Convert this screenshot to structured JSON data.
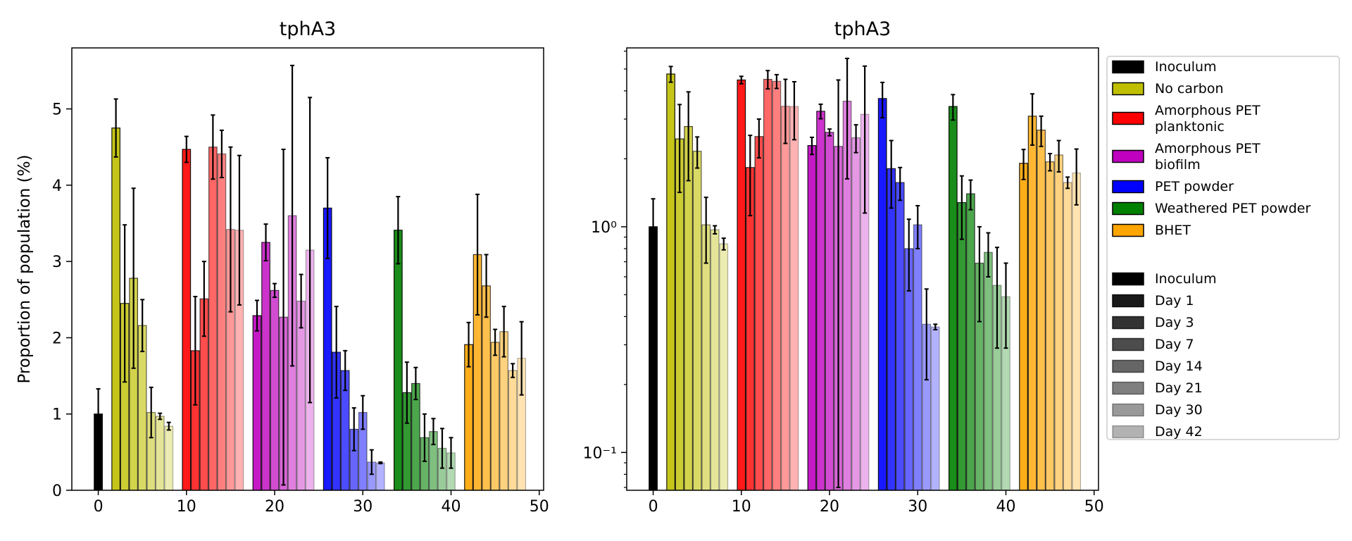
{
  "chart_data": [
    {
      "type": "bar",
      "title": "tphA3",
      "ylabel": "Proportion of population (%)",
      "xlabel": "",
      "yscale": "linear",
      "xlim": [
        -3,
        50.5
      ],
      "ylim": [
        0,
        5.8
      ],
      "xticks": [
        0,
        10,
        20,
        30,
        40,
        50
      ],
      "yticks": [
        0,
        1,
        2,
        3,
        4,
        5
      ],
      "grid": false
    },
    {
      "type": "bar",
      "title": "tphA3",
      "ylabel": "",
      "xlabel": "",
      "yscale": "log",
      "xlim": [
        -3,
        50.5
      ],
      "ylim": [
        0.068,
        6.2
      ],
      "xticks": [
        0,
        10,
        20,
        30,
        40,
        50
      ],
      "yticks": [
        1,
        0.1
      ],
      "ytick_labels": [
        "10⁰",
        "10⁻¹"
      ],
      "grid": false
    }
  ],
  "groups": [
    {
      "name": "Inoculum",
      "color": "#000000",
      "days": [
        "Inoculum"
      ],
      "start_x": 0,
      "values": [
        1.0
      ],
      "errors": [
        0.33
      ]
    },
    {
      "name": "No carbon",
      "color": "#bfbf00",
      "start_x": 2,
      "values": [
        4.75,
        2.45,
        2.78,
        2.16,
        1.02,
        0.97,
        0.84
      ],
      "errors": [
        0.38,
        1.03,
        1.18,
        0.34,
        0.33,
        0.04,
        0.05
      ]
    },
    {
      "name": "Amorphous PET planktonic",
      "color": "#ff0000",
      "start_x": 10,
      "values": [
        4.47,
        1.83,
        2.51,
        4.5,
        4.41,
        3.42,
        3.41
      ],
      "errors": [
        0.17,
        0.71,
        0.49,
        0.42,
        0.31,
        1.08,
        0.98
      ]
    },
    {
      "name": "Amorphous PET biofilm",
      "color": "#bf00bf",
      "start_x": 18,
      "values": [
        2.29,
        3.25,
        2.62,
        2.27,
        3.6,
        2.48,
        3.15
      ],
      "errors": [
        0.2,
        0.24,
        0.09,
        2.2,
        1.97,
        0.35,
        2.0
      ]
    },
    {
      "name": "PET powder",
      "color": "#0000ff",
      "start_x": 26,
      "values": [
        3.7,
        1.81,
        1.57,
        0.8,
        1.02,
        0.37,
        0.36
      ],
      "errors": [
        0.66,
        0.6,
        0.26,
        0.28,
        0.22,
        0.16,
        0.01
      ]
    },
    {
      "name": "Weathered PET powder",
      "color": "#008000",
      "start_x": 34,
      "values": [
        3.41,
        1.28,
        1.4,
        0.69,
        0.77,
        0.55,
        0.49
      ],
      "errors": [
        0.44,
        0.4,
        0.21,
        0.31,
        0.17,
        0.26,
        0.2
      ]
    },
    {
      "name": "BHET",
      "color": "#ffa500",
      "start_x": 42,
      "values": [
        1.91,
        3.09,
        2.68,
        1.94,
        2.08,
        1.57,
        1.73
      ],
      "errors": [
        0.29,
        0.79,
        0.41,
        0.17,
        0.33,
        0.09,
        0.48
      ]
    }
  ],
  "legend": {
    "position": "right",
    "groups": [
      "Inoculum",
      "No carbon",
      "Amorphous PET\nplanktonic",
      "Amorphous PET\nbiofilm",
      "PET powder",
      "Weathered PET powder",
      "BHET"
    ],
    "days": [
      "Inoculum",
      "Day 1",
      "Day 3",
      "Day 7",
      "Day 14",
      "Day 21",
      "Day 30",
      "Day 42"
    ],
    "day_alphas": [
      1.0,
      0.9,
      0.8,
      0.7,
      0.6,
      0.5,
      0.4,
      0.3
    ],
    "day_color": "#000000"
  }
}
